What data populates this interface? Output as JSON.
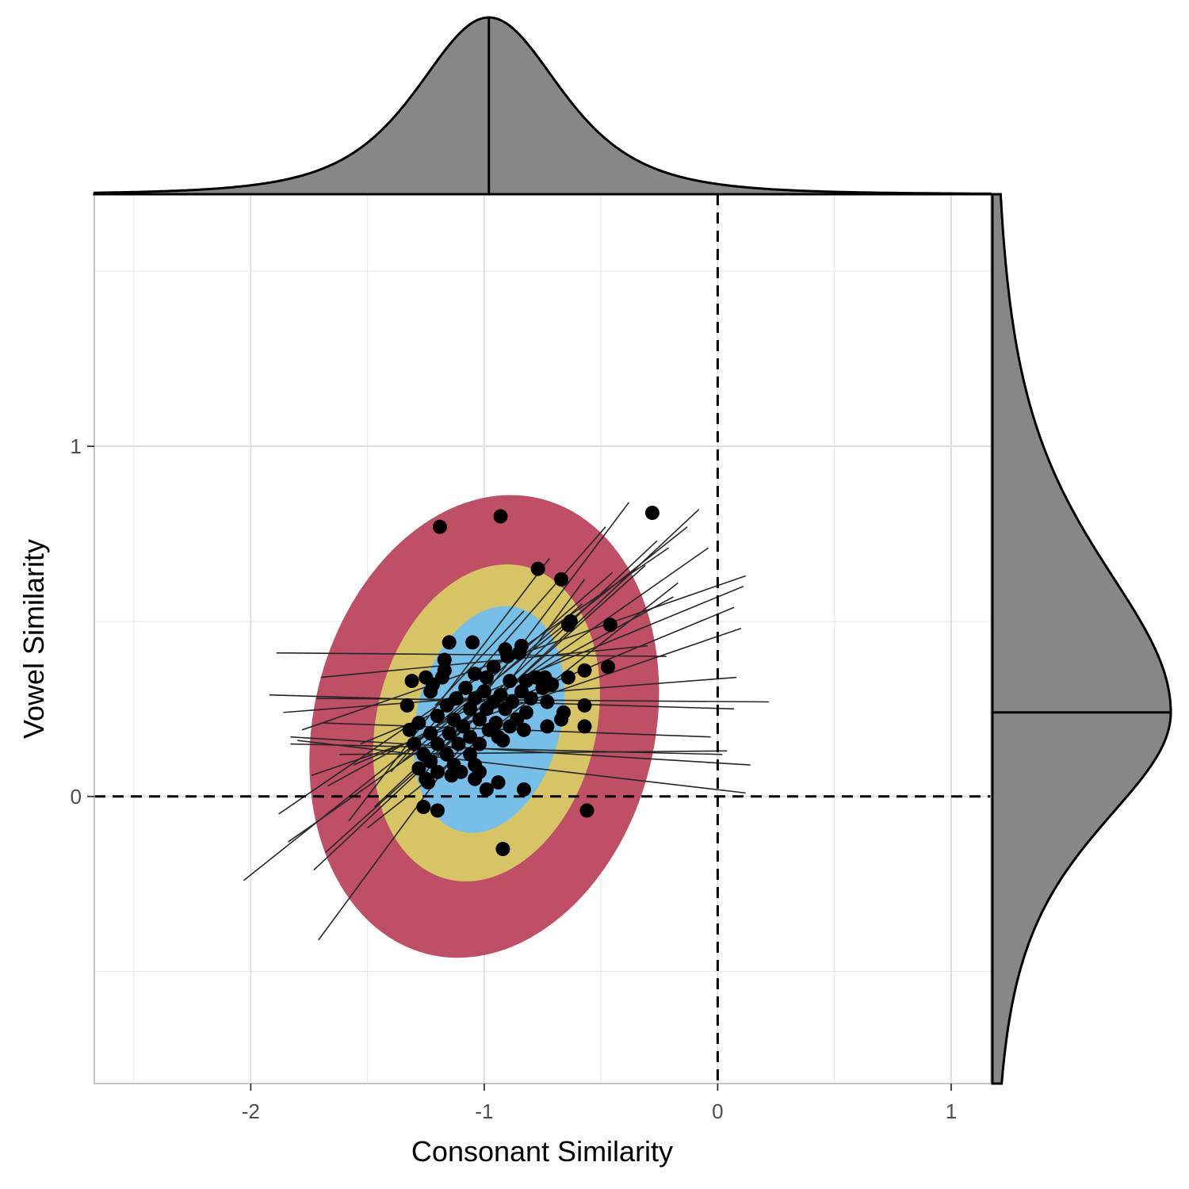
{
  "chart_data": {
    "type": "scatter",
    "title": "",
    "xlabel": "Consonant Similarity",
    "ylabel": "Vowel Similarity",
    "xlim": [
      -2.67,
      1.17
    ],
    "ylim": [
      -0.82,
      1.72
    ],
    "x_ticks": [
      {
        "value": -2,
        "label": "-2"
      },
      {
        "value": -1,
        "label": "-1"
      },
      {
        "value": 0,
        "label": "0"
      },
      {
        "value": 1,
        "label": "1"
      }
    ],
    "y_ticks": [
      {
        "value": 0,
        "label": "0"
      },
      {
        "value": 1,
        "label": "1"
      }
    ],
    "x_minor_gridlines": [
      -2.5,
      -1.5,
      -0.5,
      0.5
    ],
    "y_minor_gridlines": [
      -0.5,
      0.5,
      1.5
    ],
    "grid": true,
    "reference_lines": {
      "x": 0,
      "y": 0,
      "style": "dashed"
    },
    "center": {
      "x": -0.98,
      "y": 0.24
    },
    "ellipses": [
      {
        "level": "outer",
        "color": "#be4f65",
        "cx": -1.0,
        "cy": 0.2,
        "rx": 0.73,
        "ry": 0.67,
        "angle": 14
      },
      {
        "level": "middle",
        "color": "#d7c565",
        "cx": -0.99,
        "cy": 0.21,
        "rx": 0.47,
        "ry": 0.46,
        "angle": 14
      },
      {
        "level": "inner",
        "color": "#76bfe8",
        "cx": -0.98,
        "cy": 0.22,
        "rx": 0.31,
        "ry": 0.33,
        "angle": 14
      }
    ],
    "points": [
      [
        -1.19,
        0.77
      ],
      [
        -0.93,
        0.8
      ],
      [
        -0.28,
        0.81
      ],
      [
        -0.77,
        0.65
      ],
      [
        -0.67,
        0.62
      ],
      [
        -0.64,
        0.49
      ],
      [
        -0.46,
        0.49
      ],
      [
        -0.63,
        0.5
      ],
      [
        -1.15,
        0.44
      ],
      [
        -1.05,
        0.44
      ],
      [
        -0.84,
        0.43
      ],
      [
        -0.91,
        0.42
      ],
      [
        -0.85,
        0.41
      ],
      [
        -0.9,
        0.4
      ],
      [
        -1.17,
        0.39
      ],
      [
        -1.17,
        0.36
      ],
      [
        -1.04,
        0.35
      ],
      [
        -0.96,
        0.37
      ],
      [
        -0.47,
        0.37
      ],
      [
        -0.57,
        0.36
      ],
      [
        -1.25,
        0.34
      ],
      [
        -1.31,
        0.33
      ],
      [
        -1.22,
        0.32
      ],
      [
        -1.18,
        0.34
      ],
      [
        -0.99,
        0.34
      ],
      [
        -0.89,
        0.33
      ],
      [
        -0.82,
        0.33
      ],
      [
        -0.78,
        0.34
      ],
      [
        -0.74,
        0.34
      ],
      [
        -0.64,
        0.34
      ],
      [
        -0.71,
        0.32
      ],
      [
        -1.23,
        0.3
      ],
      [
        -1.08,
        0.31
      ],
      [
        -1.0,
        0.3
      ],
      [
        -0.93,
        0.29
      ],
      [
        -0.84,
        0.3
      ],
      [
        -0.75,
        0.31
      ],
      [
        -1.12,
        0.28
      ],
      [
        -1.04,
        0.28
      ],
      [
        -0.96,
        0.27
      ],
      [
        -0.88,
        0.27
      ],
      [
        -0.8,
        0.28
      ],
      [
        -0.73,
        0.27
      ],
      [
        -1.33,
        0.26
      ],
      [
        -1.16,
        0.26
      ],
      [
        -1.06,
        0.25
      ],
      [
        -0.99,
        0.25
      ],
      [
        -0.91,
        0.25
      ],
      [
        -0.82,
        0.24
      ],
      [
        -0.66,
        0.24
      ],
      [
        -0.57,
        0.26
      ],
      [
        -1.2,
        0.23
      ],
      [
        -1.13,
        0.22
      ],
      [
        -1.02,
        0.22
      ],
      [
        -0.95,
        0.21
      ],
      [
        -0.86,
        0.22
      ],
      [
        -0.67,
        0.22
      ],
      [
        -1.28,
        0.21
      ],
      [
        -1.09,
        0.2
      ],
      [
        -0.98,
        0.19
      ],
      [
        -0.89,
        0.2
      ],
      [
        -0.83,
        0.19
      ],
      [
        -0.73,
        0.2
      ],
      [
        -0.57,
        0.2
      ],
      [
        -1.32,
        0.19
      ],
      [
        -1.23,
        0.18
      ],
      [
        -1.15,
        0.18
      ],
      [
        -1.06,
        0.17
      ],
      [
        -0.94,
        0.17
      ],
      [
        -1.3,
        0.15
      ],
      [
        -1.2,
        0.15
      ],
      [
        -1.11,
        0.15
      ],
      [
        -1.02,
        0.15
      ],
      [
        -0.92,
        0.16
      ],
      [
        -1.26,
        0.12
      ],
      [
        -1.16,
        0.12
      ],
      [
        -1.06,
        0.12
      ],
      [
        -1.23,
        0.1
      ],
      [
        -1.13,
        0.09
      ],
      [
        -1.04,
        0.09
      ],
      [
        -1.28,
        0.08
      ],
      [
        -1.2,
        0.07
      ],
      [
        -1.1,
        0.07
      ],
      [
        -1.02,
        0.07
      ],
      [
        -1.25,
        0.05
      ],
      [
        -1.14,
        0.06
      ],
      [
        -1.04,
        0.05
      ],
      [
        -0.94,
        0.04
      ],
      [
        -1.24,
        0.04
      ],
      [
        -0.83,
        0.02
      ],
      [
        -0.99,
        0.02
      ],
      [
        -1.26,
        -0.03
      ],
      [
        -1.2,
        -0.04
      ],
      [
        -0.56,
        -0.04
      ],
      [
        -0.92,
        -0.15
      ]
    ],
    "segments": [
      [
        -1.89,
        0.41,
        -0.22,
        0.4
      ],
      [
        -1.7,
        0.34,
        -0.3,
        0.43
      ],
      [
        -1.92,
        0.29,
        0.07,
        0.25
      ],
      [
        -1.83,
        0.15,
        0.02,
        0.12
      ],
      [
        -1.83,
        0.17,
        0.14,
        0.09
      ],
      [
        -1.8,
        0.16,
        0.12,
        0.01
      ],
      [
        -1.62,
        0.12,
        0.04,
        0.13
      ],
      [
        -1.69,
        0.21,
        -0.03,
        0.17
      ],
      [
        -1.72,
        0.28,
        0.22,
        0.27
      ],
      [
        -1.86,
        0.24,
        0.08,
        0.34
      ],
      [
        -1.74,
        0.06,
        0.1,
        0.48
      ],
      [
        -1.78,
        0.19,
        0.12,
        0.63
      ],
      [
        -1.56,
        0.09,
        0.07,
        0.54
      ],
      [
        -1.53,
        0.15,
        0.11,
        0.6
      ],
      [
        -1.67,
        0.03,
        -0.19,
        0.57
      ],
      [
        -1.68,
        -0.16,
        -0.31,
        0.66
      ],
      [
        -1.73,
        -0.21,
        -0.08,
        0.82
      ],
      [
        -2.03,
        -0.24,
        -0.13,
        0.77
      ],
      [
        -1.88,
        -0.05,
        -0.21,
        0.71
      ],
      [
        -1.84,
        -0.13,
        -0.04,
        0.71
      ],
      [
        -1.71,
        -0.41,
        -0.57,
        0.62
      ],
      [
        -1.5,
        -0.09,
        -0.17,
        0.61
      ],
      [
        -1.47,
        -0.03,
        -0.26,
        0.73
      ],
      [
        -1.58,
        -0.07,
        -0.72,
        0.68
      ],
      [
        -1.4,
        0.07,
        -0.48,
        0.77
      ],
      [
        -1.33,
        0.13,
        -0.45,
        0.64
      ],
      [
        -1.26,
        0.06,
        -0.38,
        0.84
      ],
      [
        -1.35,
        0.1,
        -0.58,
        0.55
      ],
      [
        -1.21,
        0.26,
        -0.83,
        0.53
      ]
    ],
    "top_density": {
      "peak_x": -0.98
    },
    "right_density": {
      "peak_y": 0.24
    }
  }
}
